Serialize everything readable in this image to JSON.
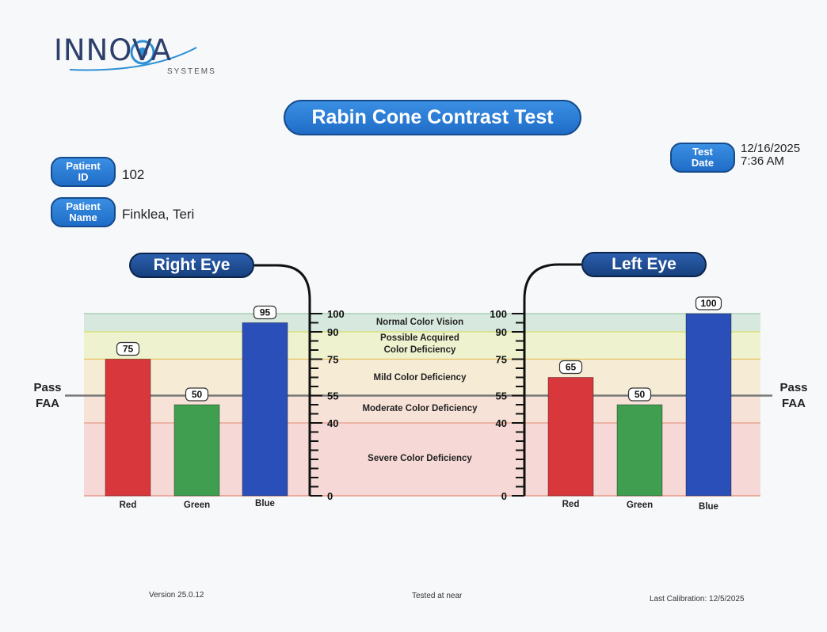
{
  "logo": {
    "main": "INNOVA",
    "sub": "SYSTEMS"
  },
  "title": "Rabin Cone Contrast Test",
  "patient_id": {
    "label_line1": "Patient",
    "label_line2": "ID",
    "value": "102"
  },
  "patient_name": {
    "label_line1": "Patient",
    "label_line2": "Name",
    "value": "Finklea, Teri"
  },
  "test_date": {
    "label_line1": "Test",
    "label_line2": "Date",
    "date": "12/16/2025",
    "time": "7:36 AM"
  },
  "right_eye_label": "Right Eye",
  "left_eye_label": "Left Eye",
  "pass_line": {
    "line1": "Pass",
    "line2": "FAA"
  },
  "colors": {
    "red": "#d8383c",
    "green": "#3f9e4f",
    "blue": "#2a4fb8",
    "zone_normal": "#d7e9df",
    "zone_possible": "#eef2cf",
    "zone_mild": "#f6ecd6",
    "zone_moderate": "#f7e2d8",
    "zone_severe": "#f6d9d6"
  },
  "chart_data": {
    "type": "bar",
    "ylim": [
      0,
      100
    ],
    "y_ticks": [
      0,
      40,
      55,
      75,
      90,
      100
    ],
    "pass_threshold": 55,
    "zones": [
      {
        "label": "Normal Color Vision",
        "from": 90,
        "to": 100
      },
      {
        "label": "Possible Acquired Color Deficiency",
        "from": 75,
        "to": 90
      },
      {
        "label": "Mild Color Deficiency",
        "from": 55,
        "to": 75
      },
      {
        "label": "Moderate Color Deficiency",
        "from": 40,
        "to": 55
      },
      {
        "label": "Severe Color Deficiency",
        "from": 0,
        "to": 40
      }
    ],
    "categories": [
      "Red",
      "Green",
      "Blue"
    ],
    "series": [
      {
        "name": "Right Eye",
        "values": [
          75,
          50,
          95
        ]
      },
      {
        "name": "Left Eye",
        "values": [
          65,
          50,
          100
        ]
      }
    ]
  },
  "footer": {
    "version": "Version 25.0.12",
    "tested": "Tested at near",
    "calibration": "Last Calibration: 12/5/2025"
  }
}
